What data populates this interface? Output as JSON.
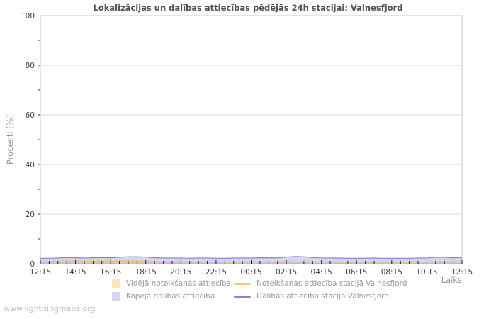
{
  "title": "Lokalizācijas un dalības attiecības pēdējās 24h stacijai: Valnesfjord",
  "watermark": "www.lightningmaps.org",
  "y_axis": {
    "label": "Procenti  [%]",
    "min": 0,
    "max": 100,
    "major_tick_step": 20,
    "minor_tick_step": 10
  },
  "x_axis": {
    "label": "Laiks",
    "tick_labels": [
      "12:15",
      "14:15",
      "16:15",
      "18:15",
      "20:15",
      "22:15",
      "00:15",
      "02:15",
      "04:15",
      "06:15",
      "08:15",
      "10:15",
      "12:15"
    ]
  },
  "colors": {
    "grid": "#d8d8d8",
    "plot_border": "#c9c9c9",
    "tick": "#1c1c1c",
    "avg_detection_fill": "rgba(247,199,110,0.5)",
    "total_participation_fill": "rgba(134,134,220,0.35)",
    "detection_line": "#f6c76e",
    "participation_line": "#8282dc"
  },
  "legend": {
    "items": [
      {
        "swatch": "area",
        "color": "#fbe3b7",
        "label": "Vidējā noteikšanas attiecība"
      },
      {
        "swatch": "line",
        "color": "#f6c76e",
        "label": "Noteikšanas attiecība stacijā Valnesfjord"
      },
      {
        "swatch": "area",
        "color": "#d6d6f3",
        "label": "Kopējā dalības attiecība"
      },
      {
        "swatch": "line",
        "color": "#8282dc",
        "label": "Dalības attiecība stacijā Valnesfjord"
      }
    ]
  },
  "chart_data": {
    "type": "area",
    "title": "Lokalizācijas un dalības attiecības pēdējās 24h stacijai: Valnesfjord",
    "xlabel": "Laiks",
    "ylabel": "Procenti [%]",
    "ylim": [
      0,
      100
    ],
    "grid": "horizontal-only",
    "legend_position": "bottom",
    "x_major_tick_every_points": 4,
    "x": [
      "12:15",
      "12:45",
      "13:15",
      "13:45",
      "14:15",
      "14:45",
      "15:15",
      "15:45",
      "16:15",
      "16:45",
      "17:15",
      "17:45",
      "18:15",
      "18:45",
      "19:15",
      "19:45",
      "20:15",
      "20:45",
      "21:15",
      "21:45",
      "22:15",
      "22:45",
      "23:15",
      "23:45",
      "00:15",
      "00:45",
      "01:15",
      "01:45",
      "02:15",
      "02:45",
      "03:15",
      "03:45",
      "04:15",
      "04:45",
      "05:15",
      "05:45",
      "06:15",
      "06:45",
      "07:15",
      "07:45",
      "08:15",
      "08:45",
      "09:15",
      "09:45",
      "10:15",
      "10:45",
      "11:15",
      "11:45",
      "12:15"
    ],
    "series": [
      {
        "name": "Vidējā noteikšanas attiecība",
        "style": "area",
        "values": [
          1.0,
          0.9,
          1.0,
          1.1,
          1.1,
          1.1,
          1.2,
          1.2,
          1.1,
          1.2,
          1.3,
          1.2,
          1.1,
          0.9,
          0.8,
          0.9,
          0.8,
          0.8,
          0.8,
          0.7,
          0.8,
          0.7,
          0.7,
          0.7,
          0.8,
          0.8,
          0.7,
          0.8,
          0.9,
          0.8,
          0.7,
          0.7,
          0.7,
          0.6,
          0.7,
          0.7,
          0.7,
          0.7,
          0.6,
          0.7,
          0.7,
          0.6,
          0.7,
          0.7,
          0.6,
          0.7,
          0.8,
          0.8,
          0.7
        ]
      },
      {
        "name": "Noteikšanas attiecība stacijā Valnesfjord",
        "style": "line",
        "values": [
          1.0,
          0.9,
          1.0,
          1.1,
          1.1,
          1.1,
          1.2,
          1.2,
          1.1,
          1.2,
          1.3,
          1.2,
          1.1,
          0.9,
          0.8,
          0.9,
          0.8,
          0.8,
          0.8,
          0.7,
          0.8,
          0.7,
          0.7,
          0.7,
          0.8,
          0.8,
          0.7,
          0.8,
          0.9,
          0.8,
          0.7,
          0.7,
          0.7,
          0.6,
          0.7,
          0.7,
          0.7,
          0.7,
          0.6,
          0.7,
          0.7,
          0.6,
          0.7,
          0.7,
          0.6,
          0.7,
          0.8,
          0.8,
          0.7
        ]
      },
      {
        "name": "Kopējā dalības attiecība",
        "style": "area",
        "values": [
          2.2,
          2.2,
          2.3,
          2.5,
          2.4,
          2.3,
          2.4,
          2.5,
          2.4,
          2.6,
          2.8,
          2.8,
          2.7,
          2.4,
          2.3,
          2.3,
          2.3,
          2.2,
          2.3,
          2.3,
          2.2,
          2.2,
          2.3,
          2.3,
          2.3,
          2.4,
          2.4,
          2.3,
          2.7,
          2.9,
          2.8,
          2.5,
          2.3,
          2.3,
          2.3,
          2.2,
          2.2,
          2.2,
          2.3,
          2.2,
          2.2,
          2.2,
          2.2,
          2.3,
          2.3,
          2.6,
          2.6,
          2.4,
          2.5
        ]
      },
      {
        "name": "Dalības attiecība stacijā Valnesfjord",
        "style": "line",
        "values": [
          2.2,
          2.2,
          2.3,
          2.5,
          2.4,
          2.3,
          2.4,
          2.5,
          2.4,
          2.6,
          2.8,
          2.8,
          2.7,
          2.4,
          2.3,
          2.3,
          2.3,
          2.2,
          2.3,
          2.3,
          2.2,
          2.2,
          2.3,
          2.3,
          2.3,
          2.4,
          2.4,
          2.3,
          2.7,
          2.9,
          2.8,
          2.5,
          2.3,
          2.3,
          2.3,
          2.2,
          2.2,
          2.2,
          2.3,
          2.2,
          2.2,
          2.2,
          2.2,
          2.3,
          2.3,
          2.6,
          2.6,
          2.4,
          2.5
        ]
      }
    ]
  }
}
